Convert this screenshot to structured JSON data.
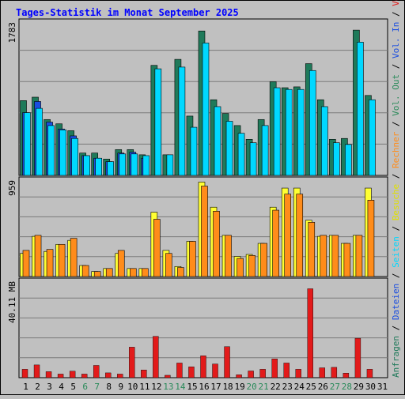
{
  "title": "Tages-Statistik im Monat September 2025",
  "colors": {
    "background": "#c0c0c0",
    "plot_bg": "#c0c0c0",
    "grid": "#7a7a7a",
    "title": "#0000ff",
    "anfragen": "#1f7a5a",
    "dateien": "#00d8ff",
    "seiten": "#1a4de0",
    "besuche": "#ffff33",
    "rechner": "#ff8c1a",
    "volumen": "#e21a1a",
    "weekend_label": "#2a8a5a",
    "weekday_label": "#000000"
  },
  "right_legend": [
    {
      "text": "Anfragen",
      "color": "#1f7a5a"
    },
    {
      "text": "Dateien",
      "color": "#1a4de0"
    },
    {
      "text": "Seiten",
      "color": "#00d8ff"
    },
    {
      "text": "Besuche",
      "color": "#e0e000"
    },
    {
      "text": "Rechner",
      "color": "#ff8c1a"
    },
    {
      "text": "Vol. Out",
      "color": "#2a8a5a"
    },
    {
      "text": "Vol. In",
      "color": "#1a4de0"
    },
    {
      "text": "Volumen",
      "color": "#e21a1a"
    }
  ],
  "chart_data": [
    {
      "type": "bar",
      "panel": "top",
      "max_label": "1783",
      "ylim": [
        0,
        1783
      ],
      "categories": [
        "1",
        "2",
        "3",
        "4",
        "5",
        "6",
        "7",
        "8",
        "9",
        "10",
        "11",
        "12",
        "13",
        "14",
        "15",
        "16",
        "17",
        "18",
        "19",
        "20",
        "21",
        "22",
        "23",
        "24",
        "25",
        "26",
        "27",
        "28",
        "29",
        "30",
        "31"
      ],
      "series": [
        {
          "name": "Anfragen",
          "values": [
            870,
            910,
            650,
            600,
            520,
            260,
            260,
            190,
            300,
            300,
            240,
            1280,
            240,
            1350,
            690,
            1680,
            880,
            720,
            580,
            420,
            650,
            1090,
            1020,
            1030,
            1300,
            880,
            420,
            430,
            1690,
            930,
            0
          ]
        },
        {
          "name": "Dateien",
          "values": [
            730,
            860,
            620,
            540,
            460,
            230,
            200,
            160,
            260,
            270,
            200,
            0,
            0,
            0,
            0,
            0,
            0,
            0,
            0,
            0,
            0,
            0,
            0,
            0,
            0,
            0,
            0,
            0,
            0,
            0,
            0
          ]
        },
        {
          "name": "Seiten",
          "values": [
            730,
            780,
            580,
            530,
            430,
            230,
            200,
            160,
            250,
            250,
            230,
            1240,
            240,
            1260,
            560,
            1540,
            800,
            630,
            490,
            380,
            580,
            1020,
            1000,
            1000,
            1220,
            800,
            380,
            360,
            1550,
            880,
            0
          ]
        }
      ]
    },
    {
      "type": "bar",
      "panel": "middle",
      "max_label": "959",
      "ylim": [
        0,
        959
      ],
      "categories": [
        "1",
        "2",
        "3",
        "4",
        "5",
        "6",
        "7",
        "8",
        "9",
        "10",
        "11",
        "12",
        "13",
        "14",
        "15",
        "16",
        "17",
        "18",
        "19",
        "20",
        "21",
        "22",
        "23",
        "24",
        "25",
        "26",
        "27",
        "28",
        "29",
        "30",
        "31"
      ],
      "series": [
        {
          "name": "Besuche",
          "values": [
            230,
            400,
            250,
            320,
            360,
            110,
            50,
            80,
            230,
            80,
            80,
            640,
            260,
            100,
            350,
            940,
            690,
            410,
            200,
            220,
            330,
            690,
            880,
            880,
            560,
            400,
            410,
            330,
            410,
            880,
            0
          ]
        },
        {
          "name": "Rechner",
          "values": [
            260,
            410,
            270,
            320,
            380,
            110,
            50,
            80,
            260,
            80,
            80,
            570,
            230,
            90,
            350,
            900,
            650,
            410,
            180,
            210,
            330,
            660,
            820,
            820,
            540,
            410,
            410,
            330,
            410,
            760,
            0
          ]
        }
      ]
    },
    {
      "type": "bar",
      "panel": "bottom",
      "max_label": "40.11 MB",
      "ylim": [
        0,
        40.11
      ],
      "categories": [
        "1",
        "2",
        "3",
        "4",
        "5",
        "6",
        "7",
        "8",
        "9",
        "10",
        "11",
        "12",
        "13",
        "14",
        "15",
        "16",
        "17",
        "18",
        "19",
        "20",
        "21",
        "22",
        "23",
        "24",
        "25",
        "26",
        "27",
        "28",
        "29",
        "30",
        "31"
      ],
      "series": [
        {
          "name": "Volumen",
          "values": [
            3.5,
            5.3,
            2.5,
            1.5,
            2.7,
            1.5,
            5.1,
            2.0,
            1.5,
            12.7,
            3.2,
            17.2,
            1.0,
            6.1,
            4.5,
            9.1,
            5.7,
            12.9,
            1.2,
            2.8,
            3.5,
            7.8,
            6.1,
            3.5,
            37.0,
            4.1,
            4.3,
            1.9,
            16.4,
            3.5,
            0
          ]
        }
      ]
    }
  ],
  "x_labels": [
    {
      "text": "1",
      "weekend": false
    },
    {
      "text": "2",
      "weekend": false
    },
    {
      "text": "3",
      "weekend": false
    },
    {
      "text": "4",
      "weekend": false
    },
    {
      "text": "5",
      "weekend": false
    },
    {
      "text": "6",
      "weekend": true
    },
    {
      "text": "7",
      "weekend": true
    },
    {
      "text": "8",
      "weekend": false
    },
    {
      "text": "9",
      "weekend": false
    },
    {
      "text": "10",
      "weekend": false
    },
    {
      "text": "11",
      "weekend": false
    },
    {
      "text": "12",
      "weekend": false
    },
    {
      "text": "13",
      "weekend": true
    },
    {
      "text": "14",
      "weekend": true
    },
    {
      "text": "15",
      "weekend": false
    },
    {
      "text": "16",
      "weekend": false
    },
    {
      "text": "17",
      "weekend": false
    },
    {
      "text": "18",
      "weekend": false
    },
    {
      "text": "19",
      "weekend": false
    },
    {
      "text": "20",
      "weekend": true
    },
    {
      "text": "21",
      "weekend": true
    },
    {
      "text": "22",
      "weekend": false
    },
    {
      "text": "23",
      "weekend": false
    },
    {
      "text": "24",
      "weekend": false
    },
    {
      "text": "25",
      "weekend": false
    },
    {
      "text": "26",
      "weekend": false
    },
    {
      "text": "27",
      "weekend": true
    },
    {
      "text": "28",
      "weekend": true
    },
    {
      "text": "29",
      "weekend": false
    },
    {
      "text": "30",
      "weekend": false
    },
    {
      "text": "31",
      "weekend": false
    }
  ]
}
